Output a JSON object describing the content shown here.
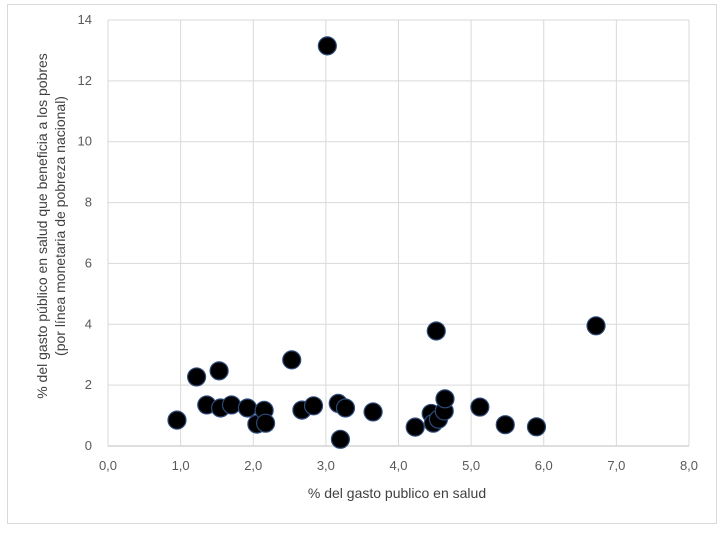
{
  "chart_data": {
    "type": "scatter",
    "xlabel": "% del gasto publico en salud",
    "ylabel_lines": [
      "% del gasto público en salud que beneficia a los pobres",
      "(por línea monetaria de pobreza nacional)"
    ],
    "xlim": [
      0,
      8
    ],
    "ylim": [
      0,
      14
    ],
    "x_ticks": [
      "0,0",
      "1,0",
      "2,0",
      "3,0",
      "4,0",
      "5,0",
      "6,0",
      "7,0",
      "8,0"
    ],
    "y_ticks": [
      "0",
      "2",
      "4",
      "6",
      "8",
      "10",
      "12",
      "14"
    ],
    "grid": true,
    "marker_color": "#000000",
    "marker_edge": "#2e4a7a",
    "points": [
      {
        "x": 3.02,
        "y": 13.15
      },
      {
        "x": 0.95,
        "y": 0.85
      },
      {
        "x": 1.22,
        "y": 2.27
      },
      {
        "x": 1.36,
        "y": 1.35
      },
      {
        "x": 1.53,
        "y": 2.47
      },
      {
        "x": 1.55,
        "y": 1.25
      },
      {
        "x": 1.7,
        "y": 1.35
      },
      {
        "x": 1.92,
        "y": 1.25
      },
      {
        "x": 2.05,
        "y": 0.72
      },
      {
        "x": 2.15,
        "y": 1.17
      },
      {
        "x": 2.17,
        "y": 0.75
      },
      {
        "x": 2.53,
        "y": 2.83
      },
      {
        "x": 2.67,
        "y": 1.18
      },
      {
        "x": 2.83,
        "y": 1.32
      },
      {
        "x": 3.17,
        "y": 1.4
      },
      {
        "x": 3.27,
        "y": 1.25
      },
      {
        "x": 3.2,
        "y": 0.22
      },
      {
        "x": 3.65,
        "y": 1.12
      },
      {
        "x": 4.23,
        "y": 0.62
      },
      {
        "x": 4.45,
        "y": 1.07
      },
      {
        "x": 4.48,
        "y": 0.75
      },
      {
        "x": 4.55,
        "y": 0.88
      },
      {
        "x": 4.52,
        "y": 3.78
      },
      {
        "x": 4.63,
        "y": 1.15
      },
      {
        "x": 4.64,
        "y": 1.55
      },
      {
        "x": 5.12,
        "y": 1.28
      },
      {
        "x": 5.47,
        "y": 0.7
      },
      {
        "x": 5.9,
        "y": 0.63
      },
      {
        "x": 6.72,
        "y": 3.95
      }
    ]
  }
}
